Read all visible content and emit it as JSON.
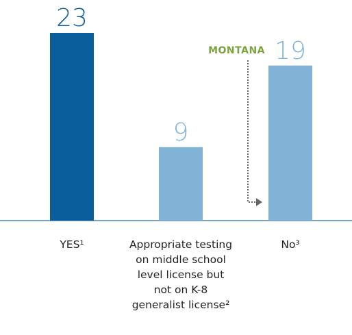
{
  "chart_data": {
    "type": "bar",
    "categories": [
      "YES¹",
      "Appropriate testing\non middle school\nlevel license but\nnot on K-8\ngeneralist license²",
      "No³"
    ],
    "values": [
      23,
      9,
      19
    ],
    "colors": [
      "#0b5e9c",
      "#80b3d6",
      "#80b3d6"
    ],
    "annotation": "MONTANA",
    "annotation_color": "#7aa23f"
  }
}
